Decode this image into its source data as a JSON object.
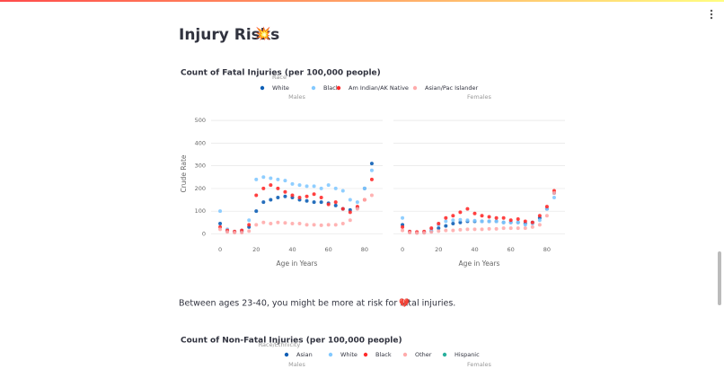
{
  "header": {
    "title": "Injury Risks",
    "icon": "💥"
  },
  "note": {
    "text": "Between ages 23-40, you might be more at risk for fatal injuries.",
    "icon": "💔"
  },
  "chart_data": [
    {
      "type": "scatter",
      "title": "Count of Fatal Injuries (per 100,000 people)",
      "legend_title": "Race",
      "xlabel": "Age in Years",
      "ylabel": "Crude Rate",
      "x": [
        0,
        4,
        8,
        12,
        16,
        20,
        24,
        28,
        32,
        36,
        40,
        44,
        48,
        52,
        56,
        60,
        64,
        68,
        72,
        76,
        80,
        84
      ],
      "xlim": [
        -5,
        90
      ],
      "ylim": [
        -30,
        560
      ],
      "xticks": [
        0,
        20,
        40,
        60,
        80
      ],
      "yticks": [
        0,
        100,
        200,
        300,
        400,
        500
      ],
      "grid": true,
      "series": [
        {
          "name": "White",
          "color": "#0d5eb5"
        },
        {
          "name": "Black",
          "color": "#83c9ff"
        },
        {
          "name": "Am Indian/AK Native",
          "color": "#ff2b2b"
        },
        {
          "name": "Asian/Pac Islander",
          "color": "#ffabab"
        }
      ],
      "panels": [
        {
          "title": "Males",
          "series": [
            {
              "values": [
                45,
                12,
                8,
                10,
                30,
                100,
                140,
                150,
                160,
                165,
                160,
                150,
                145,
                140,
                140,
                135,
                125,
                110,
                105,
                115,
                200,
                310
              ]
            },
            {
              "values": [
                100,
                20,
                10,
                15,
                60,
                240,
                250,
                245,
                240,
                235,
                220,
                215,
                210,
                210,
                200,
                215,
                200,
                190,
                150,
                140,
                200,
                280
              ]
            },
            {
              "values": [
                30,
                15,
                10,
                15,
                40,
                170,
                200,
                215,
                200,
                185,
                170,
                160,
                165,
                175,
                160,
                130,
                140,
                110,
                95,
                120,
                150,
                240
              ]
            },
            {
              "values": [
                20,
                8,
                5,
                5,
                12,
                40,
                50,
                45,
                50,
                48,
                45,
                45,
                40,
                40,
                38,
                40,
                40,
                45,
                60,
                110,
                150,
                170
              ]
            }
          ]
        },
        {
          "title": "Females",
          "series": [
            {
              "values": [
                40,
                8,
                5,
                6,
                12,
                25,
                35,
                45,
                50,
                55,
                55,
                55,
                55,
                55,
                50,
                50,
                50,
                45,
                50,
                70,
                110,
                180
              ]
            },
            {
              "values": [
                70,
                10,
                5,
                8,
                20,
                40,
                55,
                60,
                62,
                60,
                58,
                55,
                55,
                55,
                50,
                50,
                50,
                40,
                45,
                60,
                110,
                160
              ]
            },
            {
              "values": [
                30,
                10,
                8,
                10,
                25,
                45,
                70,
                80,
                95,
                110,
                90,
                80,
                75,
                70,
                70,
                60,
                65,
                55,
                50,
                80,
                120,
                190
              ]
            },
            {
              "values": [
                15,
                5,
                3,
                4,
                8,
                12,
                15,
                15,
                18,
                20,
                20,
                20,
                22,
                22,
                25,
                25,
                25,
                25,
                30,
                40,
                80,
                180
              ]
            }
          ]
        }
      ]
    },
    {
      "type": "scatter",
      "title": "Count of Non-Fatal Injuries (per 100,000 people)",
      "legend_title": "Race/Ethnicity",
      "series": [
        {
          "name": "Asian",
          "color": "#0d5eb5"
        },
        {
          "name": "White",
          "color": "#83c9ff"
        },
        {
          "name": "Black",
          "color": "#ff2b2b"
        },
        {
          "name": "Other",
          "color": "#ffabab"
        },
        {
          "name": "Hispanic",
          "color": "#29b09d"
        }
      ],
      "panels": [
        {
          "title": "Males"
        },
        {
          "title": "Females"
        }
      ]
    }
  ]
}
